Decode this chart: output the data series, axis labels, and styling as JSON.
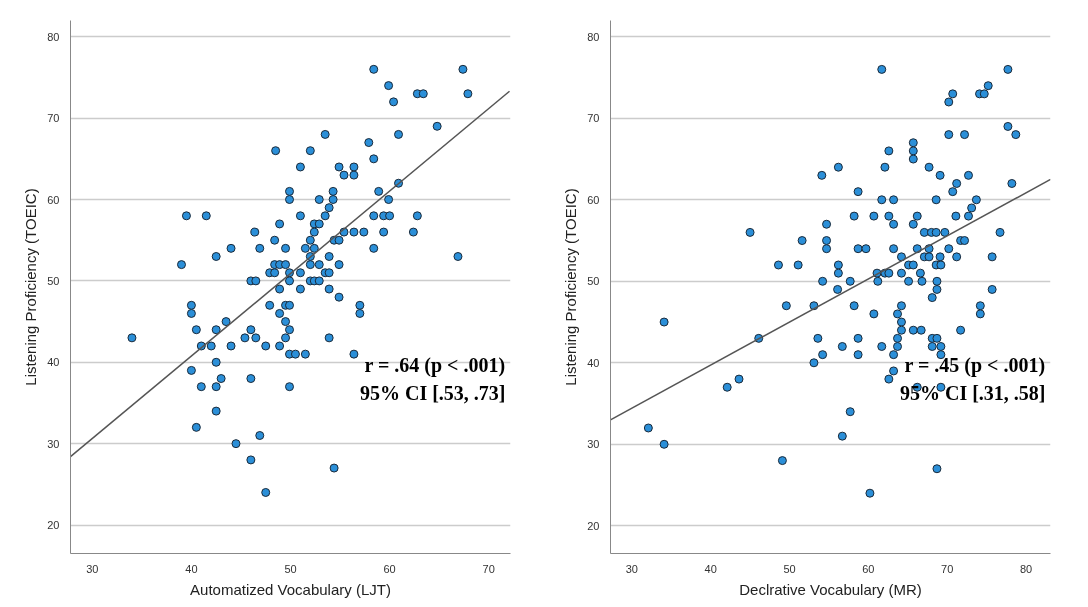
{
  "chart_data": [
    {
      "type": "scatter",
      "xlabel": "Automatized Vocabulary (LJT)",
      "ylabel": "Listening Proficiency (TOEIC)",
      "xlim": [
        27.8,
        72.2
      ],
      "ylim": [
        16.5,
        82
      ],
      "xticks": [
        30,
        40,
        50,
        60,
        70
      ],
      "yticks": [
        20,
        30,
        40,
        50,
        60,
        70,
        80
      ],
      "grid": "y",
      "annotations": [
        "r = .64 (p < .001)",
        "95% CI [.53, .73]"
      ],
      "series": [
        {
          "marker": "circle",
          "color": "#2b8fd8",
          "x": [
            58.4,
            67.4,
            59.9,
            60.4,
            62.8,
            63.4,
            67.9,
            64.8,
            53.5,
            60.9,
            57.9,
            48.5,
            52,
            58.4,
            51,
            54.9,
            56.4,
            55.4,
            56.4,
            49.9,
            54.3,
            58.9,
            49.9,
            52.9,
            54.3,
            59.9,
            60.9,
            53.9,
            39.5,
            41.5,
            51,
            53.5,
            58.4,
            59.4,
            60,
            62.8,
            48.9,
            52.4,
            52.9,
            46.4,
            52.4,
            55.4,
            56.4,
            57.4,
            59.4,
            62.4,
            48.4,
            52,
            54.4,
            54.9,
            44,
            46.9,
            49.5,
            51.5,
            52.4,
            58.4,
            42.5,
            52,
            53.9,
            66.9,
            39,
            48.4,
            48.9,
            49.5,
            52,
            52.9,
            54.9,
            47.9,
            48.4,
            49.9,
            51,
            53.5,
            53.9,
            46,
            46.5,
            49.9,
            52,
            52.4,
            52.9,
            48.9,
            51,
            53.9,
            54.9,
            40,
            47.9,
            49.5,
            49.9,
            57,
            40,
            48.9,
            57,
            43.5,
            49.5,
            40.5,
            42.5,
            46,
            49.9,
            34,
            45.4,
            46.5,
            49.5,
            53.9,
            41,
            42,
            44,
            47.5,
            48.9,
            49.9,
            50.5,
            51.5,
            56.4,
            42.5,
            40,
            46,
            43,
            41,
            42.5,
            49.9,
            42.5,
            40.5,
            46.9,
            44.5,
            46,
            54.4,
            47.5
          ],
          "values": [
            76,
            76,
            74,
            72,
            73,
            73,
            73,
            69,
            68,
            68,
            67,
            66,
            66,
            65,
            64,
            64,
            64,
            63,
            63,
            61,
            61,
            61,
            60,
            60,
            60,
            60,
            62,
            59,
            58,
            58,
            58,
            58,
            58,
            58,
            58,
            58,
            57,
            57,
            57,
            56,
            56,
            56,
            56,
            56,
            56,
            56,
            55,
            55,
            55,
            55,
            54,
            54,
            54,
            54,
            54,
            54,
            53,
            53,
            53,
            53,
            52,
            52,
            52,
            52,
            52,
            52,
            52,
            51,
            51,
            51,
            51,
            51,
            51,
            50,
            50,
            50,
            50,
            50,
            50,
            49,
            49,
            49,
            48,
            47,
            47,
            47,
            47,
            47,
            46,
            46,
            46,
            45,
            45,
            44,
            44,
            44,
            44,
            43,
            43,
            43,
            43,
            43,
            42,
            42,
            42,
            42,
            42,
            41,
            41,
            41,
            41,
            40,
            39,
            38,
            38,
            37,
            37,
            37,
            34,
            32,
            31,
            30,
            28,
            27,
            24
          ]
        },
        {
          "type": "line",
          "marker": "none",
          "color": "#555555",
          "x": [
            27.8,
            72.1
          ],
          "values": [
            28.4,
            73.3
          ]
        }
      ]
    },
    {
      "type": "scatter",
      "xlabel": "Declrative Vocabulary (MR)",
      "ylabel": "Listening Proficiency (TOEIC)",
      "xlim": [
        27.3,
        83.1
      ],
      "ylim": [
        16.6,
        82
      ],
      "xticks": [
        30,
        40,
        50,
        60,
        70,
        80
      ],
      "yticks": [
        20,
        30,
        40,
        50,
        60,
        70,
        80
      ],
      "grid": "y",
      "annotations": [
        "r = .45 (p < .001)",
        "95% CI [.31, .58]"
      ],
      "series": [
        {
          "marker": "circle",
          "color": "#2b8fd8",
          "x": [
            61.7,
            77.7,
            75.2,
            70.7,
            74.1,
            74.7,
            70.2,
            77.7,
            70.2,
            72.2,
            78.7,
            65.7,
            65.7,
            62.6,
            65.7,
            56.2,
            62.1,
            67.7,
            54.1,
            69.1,
            72.7,
            71.2,
            78.2,
            58.7,
            70.7,
            61.7,
            63.2,
            68.6,
            73.7,
            73.1,
            58.2,
            60.7,
            62.6,
            66.2,
            71.1,
            72.7,
            45,
            54.7,
            63.2,
            65.7,
            67.1,
            68,
            68.6,
            69.7,
            76.7,
            51.6,
            54.7,
            71.7,
            72.2,
            54.7,
            58.7,
            59.7,
            63.2,
            66.2,
            67.7,
            70.2,
            64.2,
            67.1,
            67.7,
            69.1,
            71.2,
            75.7,
            48.6,
            51.1,
            56.2,
            65.1,
            65.7,
            68.6,
            69.2,
            56.2,
            61.1,
            62.1,
            62.6,
            64.2,
            66.6,
            54.2,
            57.7,
            61.2,
            65.1,
            66.8,
            68.7,
            75.7,
            56.1,
            68.7,
            68.1,
            49.6,
            53.1,
            58.2,
            64.2,
            74.2,
            60.7,
            63.7,
            74.2,
            34.1,
            64.2,
            64.2,
            65.7,
            66.7,
            71.7,
            46.1,
            53.6,
            58.7,
            63.7,
            68.1,
            68.7,
            56.7,
            61.7,
            63.7,
            68.1,
            69.2,
            54.2,
            58.7,
            63.2,
            69.2,
            53.1,
            63.2,
            62.6,
            43.6,
            42.1,
            66.2,
            69.2,
            57.7,
            32.1,
            56.7,
            34.1,
            49.1,
            68.7,
            60.2
          ],
          "values": [
            76,
            76,
            74,
            73,
            73,
            73,
            72,
            69,
            68,
            68,
            68,
            67,
            66,
            66,
            65,
            64,
            64,
            64,
            63,
            63,
            63,
            62,
            62,
            61,
            61,
            60,
            60,
            60,
            60,
            59,
            58,
            58,
            58,
            58,
            58,
            58,
            56,
            57,
            57,
            57,
            56,
            56,
            56,
            56,
            56,
            55,
            55,
            55,
            55,
            54,
            54,
            54,
            54,
            54,
            54,
            54,
            53,
            53,
            53,
            53,
            53,
            53,
            52,
            52,
            52,
            52,
            52,
            52,
            52,
            51,
            51,
            51,
            51,
            51,
            51,
            50,
            50,
            50,
            50,
            50,
            50,
            49,
            49,
            49,
            48,
            47,
            47,
            47,
            47,
            47,
            46,
            46,
            46,
            45,
            45,
            44,
            44,
            44,
            44,
            43,
            43,
            43,
            43,
            43,
            43,
            42,
            42,
            42,
            42,
            42,
            41,
            41,
            41,
            41,
            40,
            39,
            38,
            38,
            37,
            37,
            37,
            34,
            32,
            31,
            30,
            28,
            27,
            24
          ]
        },
        {
          "type": "line",
          "marker": "none",
          "color": "#555555",
          "x": [
            27.3,
            83.1
          ],
          "values": [
            33.0,
            62.5
          ]
        }
      ]
    }
  ]
}
